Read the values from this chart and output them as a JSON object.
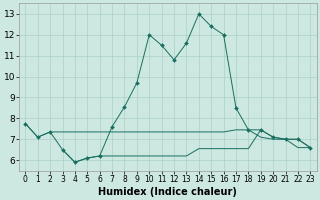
{
  "xlabel": "Humidex (Indice chaleur)",
  "background_color": "#cce8e0",
  "line_color": "#1a6e60",
  "xlim": [
    -0.5,
    23.5
  ],
  "ylim": [
    5.5,
    13.5
  ],
  "yticks": [
    6,
    7,
    8,
    9,
    10,
    11,
    12,
    13
  ],
  "xticks": [
    0,
    1,
    2,
    3,
    4,
    5,
    6,
    7,
    8,
    9,
    10,
    11,
    12,
    13,
    14,
    15,
    16,
    17,
    18,
    19,
    20,
    21,
    22,
    23
  ],
  "x_main": [
    0,
    1,
    2,
    3,
    4,
    5,
    6,
    7,
    8,
    9,
    10,
    11,
    12,
    13,
    14,
    15,
    16,
    17,
    18,
    19,
    20,
    21,
    22,
    23
  ],
  "y_main": [
    7.75,
    7.1,
    7.35,
    6.5,
    5.9,
    6.1,
    6.2,
    7.6,
    8.55,
    9.7,
    12.0,
    11.5,
    10.8,
    11.6,
    13.0,
    12.4,
    12.0,
    8.5,
    7.45,
    7.45,
    7.1,
    7.0,
    7.0,
    6.6
  ],
  "x_mid": [
    0,
    1,
    2,
    3,
    4,
    5,
    6,
    7,
    8,
    9,
    10,
    11,
    12,
    13,
    14,
    15,
    16,
    17,
    18,
    19,
    20,
    21,
    22,
    23
  ],
  "y_mid": [
    7.75,
    7.1,
    7.35,
    7.35,
    7.35,
    7.35,
    7.35,
    7.35,
    7.35,
    7.35,
    7.35,
    7.35,
    7.35,
    7.35,
    7.35,
    7.35,
    7.35,
    7.45,
    7.45,
    7.1,
    7.0,
    7.0,
    6.6,
    6.6
  ],
  "x_low": [
    3,
    4,
    5,
    6,
    7,
    8,
    9,
    10,
    11,
    12,
    13,
    14,
    15,
    16,
    17,
    18,
    19,
    20,
    21,
    22,
    23
  ],
  "y_low": [
    6.5,
    5.9,
    6.1,
    6.2,
    6.2,
    6.2,
    6.2,
    6.2,
    6.2,
    6.2,
    6.2,
    6.55,
    6.55,
    6.55,
    6.55,
    6.55,
    7.45,
    7.1,
    7.0,
    7.0,
    6.6
  ],
  "grid_color": "#aad0c8",
  "font_size": 6.5
}
